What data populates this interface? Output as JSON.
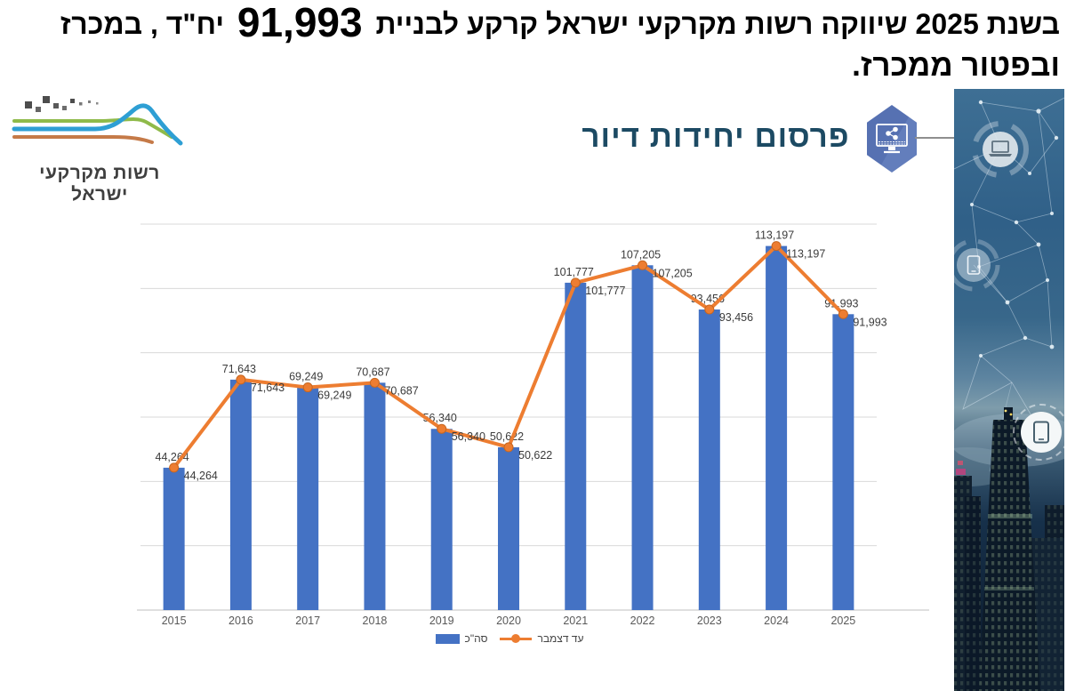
{
  "headline": {
    "line1_prefix": "בשנת 2025 שיווקה רשות מקרקעי ישראל קרקע לבניית",
    "line1_number": "91,993",
    "line1_suffix": "יח\"ד , במכרז",
    "line2": "ובפטור ממכרז."
  },
  "logo": {
    "text": "רשות מקרקעי ישראל"
  },
  "section": {
    "icon": "monitor-share-icon",
    "accent_color": "#5b76b7"
  },
  "chart_data": {
    "type": "bar",
    "combo": "bar+line",
    "title": "פרסום יחידות דיור",
    "title_color": "#1c4a63",
    "categories": [
      "2015",
      "2016",
      "2017",
      "2018",
      "2019",
      "2020",
      "2021",
      "2022",
      "2023",
      "2024",
      "2025"
    ],
    "series": [
      {
        "name": "סה\"כ",
        "type": "bar",
        "color": "#4472C4",
        "values": [
          44264,
          71643,
          69249,
          70687,
          56340,
          50622,
          101777,
          107205,
          93456,
          113197,
          91993
        ]
      },
      {
        "name": "עד דצמבר",
        "type": "line",
        "color": "#ED7D31",
        "values": [
          44264,
          71643,
          69249,
          70687,
          56340,
          50622,
          101777,
          107205,
          93456,
          113197,
          91993
        ]
      }
    ],
    "ylim": [
      0,
      120000
    ],
    "gridlines": {
      "interval": 20000,
      "color": "#D9D9D9",
      "axis_color": "#BFBFBF"
    },
    "legend_position": "bottom",
    "data_labels": true,
    "label_color": "#3b3b3b"
  },
  "strip": {
    "icons": [
      "laptop-icon",
      "smartphone-icon",
      "tablet-icon"
    ]
  }
}
